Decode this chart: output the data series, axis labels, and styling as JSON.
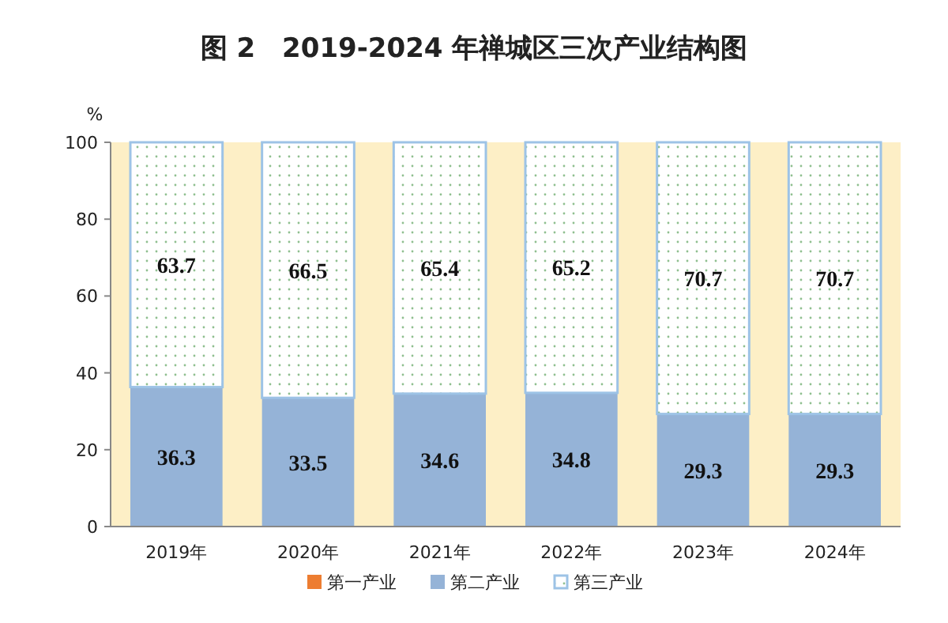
{
  "chart_data": {
    "type": "bar",
    "title": "图 2　2019-2024 年禅城区三次产业结构图",
    "ylabel": "%",
    "categories": [
      "2019年",
      "2020年",
      "2021年",
      "2022年",
      "2023年",
      "2024年"
    ],
    "series": [
      {
        "name": "第一产业",
        "color": "#ed7d31",
        "values": [
          0,
          0,
          0,
          0,
          0,
          0
        ]
      },
      {
        "name": "第二产业",
        "color": "#95b3d7",
        "values": [
          36.3,
          33.5,
          34.6,
          34.8,
          29.3,
          29.3
        ],
        "value_labels": [
          "36.3",
          "33.5",
          "34.6",
          "34.8",
          "29.3",
          "29.3"
        ]
      },
      {
        "name": "第三产业",
        "color": "#9dc3e6",
        "values": [
          63.7,
          66.5,
          65.4,
          65.2,
          70.7,
          70.7
        ],
        "value_labels": [
          "63.7",
          "66.5",
          "65.4",
          "65.2",
          "70.7",
          "70.7"
        ]
      }
    ],
    "stacked": true,
    "ylim": [
      0,
      100
    ],
    "yticks": [
      0,
      20,
      40,
      60,
      80,
      100
    ],
    "grid": false,
    "bands": [
      {
        "axis": "y",
        "from": 0,
        "to": 100,
        "color": "#fdefc6"
      }
    ],
    "legend": "bottom"
  }
}
